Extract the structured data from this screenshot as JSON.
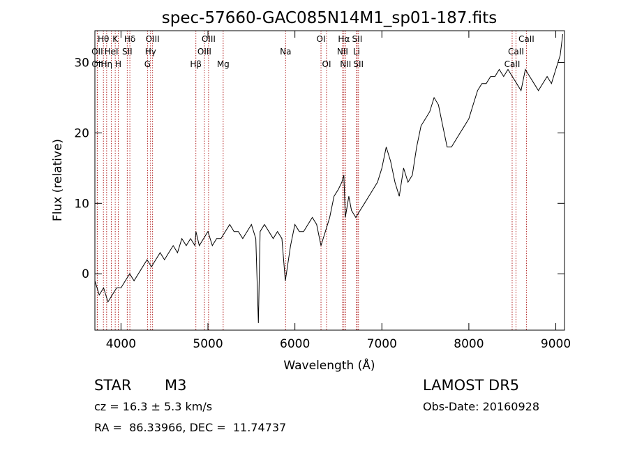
{
  "chart_data": {
    "type": "line",
    "title": "spec-57660-GAC085N14M1_sp01-187.fits",
    "xlabel": "Wavelength (Å)",
    "ylabel": "Flux (relative)",
    "xlim": [
      3700,
      9100
    ],
    "ylim": [
      -8,
      34.5
    ],
    "xticks": [
      4000,
      5000,
      6000,
      7000,
      8000,
      9000
    ],
    "yticks": [
      0,
      10,
      20,
      30
    ],
    "x_tick_labels": [
      "4000",
      "5000",
      "6000",
      "7000",
      "8000",
      "9000"
    ],
    "y_tick_labels": [
      "0",
      "10",
      "20",
      "30"
    ],
    "line_color": "#000000",
    "marker_color": "#b22222",
    "series": [
      {
        "x": [
          3700,
          3750,
          3800,
          3850,
          3900,
          3950,
          4000,
          4050,
          4100,
          4150,
          4200,
          4250,
          4300,
          4350,
          4400,
          4450,
          4500,
          4550,
          4600,
          4650,
          4700,
          4750,
          4800,
          4850,
          4862,
          4900,
          4950,
          5000,
          5050,
          5100,
          5150,
          5200,
          5250,
          5300,
          5350,
          5400,
          5450,
          5500,
          5550,
          5580,
          5600,
          5650,
          5700,
          5750,
          5800,
          5850,
          5890,
          5950,
          6000,
          6050,
          6100,
          6150,
          6200,
          6250,
          6300,
          6350,
          6400,
          6450,
          6500,
          6540,
          6563,
          6580,
          6620,
          6650,
          6700,
          6750,
          6800,
          6850,
          6900,
          6950,
          7000,
          7050,
          7100,
          7150,
          7200,
          7250,
          7300,
          7350,
          7400,
          7450,
          7500,
          7550,
          7600,
          7650,
          7700,
          7750,
          7800,
          7850,
          7900,
          7950,
          8000,
          8050,
          8100,
          8150,
          8200,
          8250,
          8300,
          8350,
          8400,
          8450,
          8500,
          8550,
          8600,
          8650,
          8700,
          8750,
          8800,
          8850,
          8900,
          8950,
          9000,
          9050,
          9080
        ],
        "y": [
          -1,
          -3,
          -2,
          -4,
          -3,
          -2,
          -2,
          -1,
          0,
          -1,
          0,
          1,
          2,
          1,
          2,
          3,
          2,
          3,
          4,
          3,
          5,
          4,
          5,
          4,
          6,
          4,
          5,
          6,
          4,
          5,
          5,
          6,
          7,
          6,
          6,
          5,
          6,
          7,
          5,
          -7,
          6,
          7,
          6,
          5,
          6,
          5,
          -1,
          4,
          7,
          6,
          6,
          7,
          8,
          7,
          4,
          6,
          8,
          11,
          12,
          13,
          14,
          8,
          11,
          9,
          8,
          9,
          10,
          11,
          12,
          13,
          15,
          18,
          16,
          13,
          11,
          15,
          13,
          14,
          18,
          21,
          22,
          23,
          25,
          24,
          21,
          18,
          18,
          19,
          20,
          21,
          22,
          24,
          26,
          27,
          27,
          28,
          28,
          29,
          28,
          29,
          28,
          27,
          26,
          29,
          28,
          27,
          26,
          27,
          28,
          27,
          29,
          31,
          34
        ]
      }
    ],
    "line_markers": [
      {
        "label": "Hθ",
        "x": 3798,
        "row": 0
      },
      {
        "label": "OII",
        "x": 3727,
        "row": 1
      },
      {
        "label": "OII",
        "x": 3729,
        "row": 2
      },
      {
        "label": "K",
        "x": 3934,
        "row": 0
      },
      {
        "label": "HeI",
        "x": 3889,
        "row": 1
      },
      {
        "label": "Hη",
        "x": 3835,
        "row": 2
      },
      {
        "label": "H",
        "x": 3969,
        "row": 2
      },
      {
        "label": "Hδ",
        "x": 4102,
        "row": 0
      },
      {
        "label": "SII",
        "x": 4072,
        "row": 1
      },
      {
        "label": "OIII",
        "x": 4363,
        "row": 0
      },
      {
        "label": "Hγ",
        "x": 4340,
        "row": 1
      },
      {
        "label": "G",
        "x": 4305,
        "row": 2
      },
      {
        "label": "OIII",
        "x": 5007,
        "row": 0
      },
      {
        "label": "OIII",
        "x": 4959,
        "row": 1
      },
      {
        "label": "Hβ",
        "x": 4861,
        "row": 2
      },
      {
        "label": "Mg",
        "x": 5175,
        "row": 2
      },
      {
        "label": "Na",
        "x": 5893,
        "row": 1
      },
      {
        "label": "OI",
        "x": 6300,
        "row": 0
      },
      {
        "label": "OI",
        "x": 6364,
        "row": 2
      },
      {
        "label": "Hα",
        "x": 6563,
        "row": 0
      },
      {
        "label": "SII",
        "x": 6716,
        "row": 0
      },
      {
        "label": "NII",
        "x": 6548,
        "row": 1
      },
      {
        "label": "Li",
        "x": 6708,
        "row": 1
      },
      {
        "label": "NII",
        "x": 6583,
        "row": 2
      },
      {
        "label": "SII",
        "x": 6731,
        "row": 2
      },
      {
        "label": "CaII",
        "x": 8662,
        "row": 0
      },
      {
        "label": "CaII",
        "x": 8542,
        "row": 1
      },
      {
        "label": "CaII",
        "x": 8498,
        "row": 2
      }
    ]
  },
  "info": {
    "object_class": "STAR",
    "subclass": "M3",
    "survey": "LAMOST DR5",
    "redshift": "cz = 16.3 ± 5.3 km/s",
    "obs_date": "Obs-Date: 20160928",
    "coords": "RA =  86.33966, DEC =  11.74737"
  }
}
